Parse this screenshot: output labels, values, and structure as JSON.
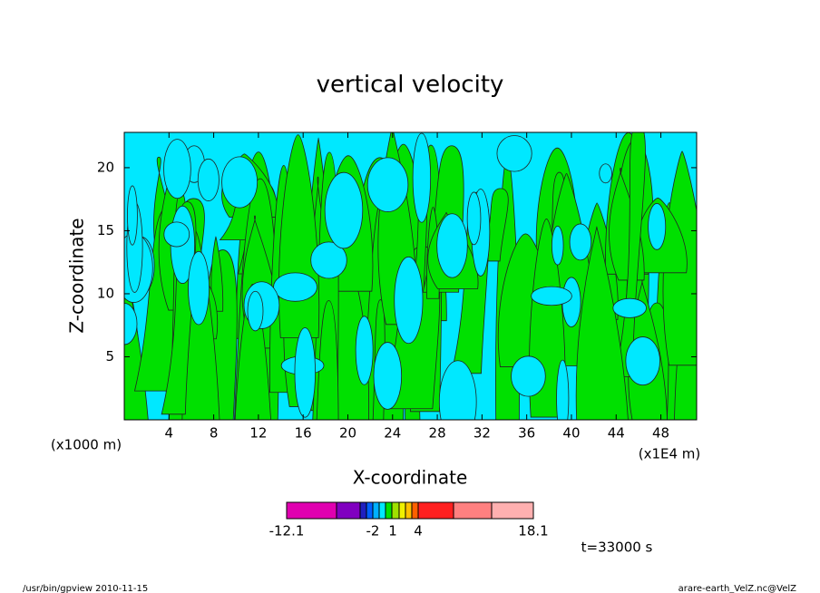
{
  "chart_data": {
    "type": "contour",
    "title": "vertical velocity",
    "x_label": "X-coordinate",
    "y_label": "Z-coordinate",
    "x_unit_left": "(x1000 m)",
    "x_unit_right": "(x1E4 m)",
    "xlim": [
      0,
      51.2
    ],
    "xticks": [
      4,
      8,
      12,
      16,
      20,
      24,
      28,
      32,
      36,
      40,
      44,
      48
    ],
    "ylim": [
      0,
      22.8
    ],
    "yticks": [
      5,
      10,
      15,
      20
    ],
    "field_colors": [
      "#00e8ff",
      "#00e000"
    ],
    "colorbar": {
      "colors": [
        "#e000b0",
        "#8000c0",
        "#2020c0",
        "#0060ff",
        "#00b0ff",
        "#00e8ff",
        "#00e000",
        "#a0e000",
        "#f0f000",
        "#ffc000",
        "#ff6000",
        "#ff2020",
        "#ff8080",
        "#ffb0b0"
      ],
      "ticks": [
        -12.1,
        -2,
        1,
        4,
        18.1
      ]
    },
    "time_label": "t=33000 s",
    "footer_left": "/usr/bin/gpview   2010-11-15",
    "footer_right": "arare-earth_VelZ.nc@VelZ"
  }
}
